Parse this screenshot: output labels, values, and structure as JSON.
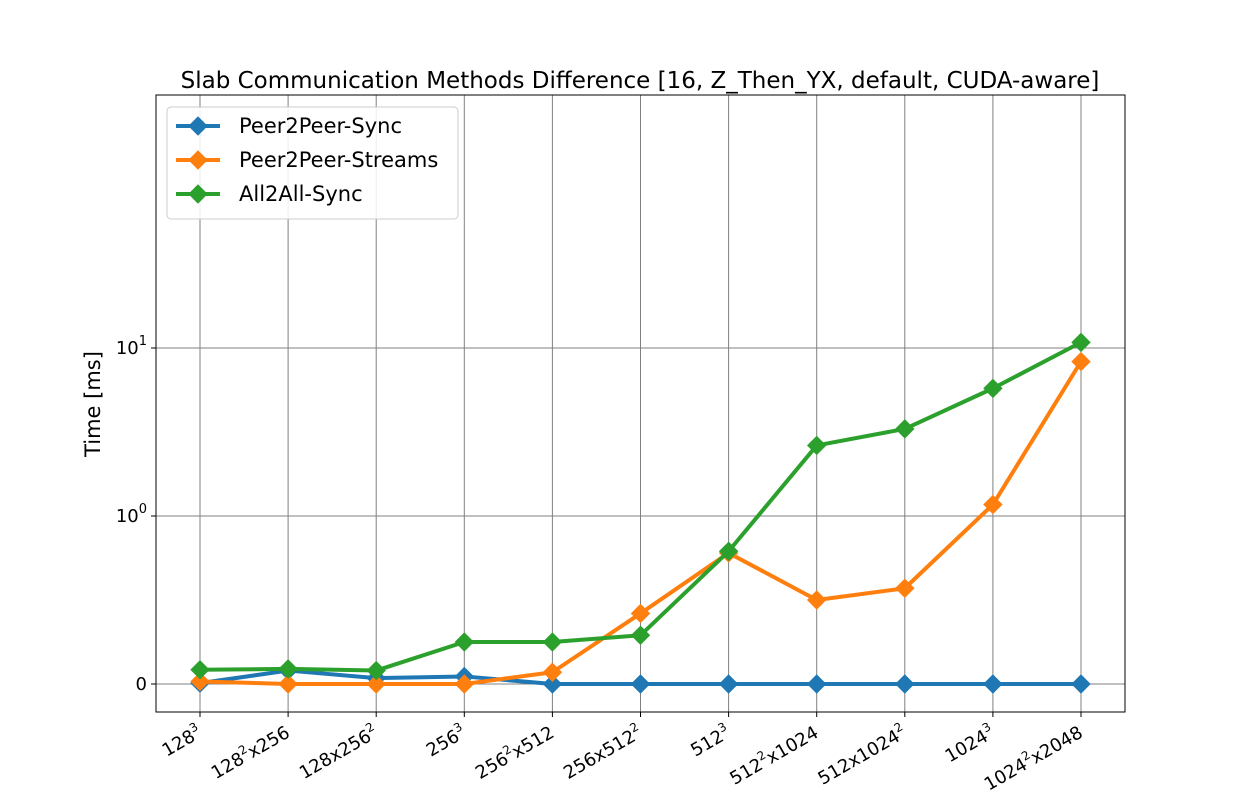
{
  "chart_data": {
    "type": "line",
    "title": "Slab Communication Methods Difference [16, Z_Then_YX, default, CUDA-aware]",
    "xlabel": "",
    "ylabel": "Time [ms]",
    "yscale": "symlog",
    "grid": true,
    "legend_position": "top-left",
    "categories": [
      {
        "base": "128",
        "sup": "3",
        "rest": ""
      },
      {
        "base": "128",
        "sup": "2",
        "rest": "x256"
      },
      {
        "base": "128x256",
        "sup": "2",
        "rest": ""
      },
      {
        "base": "256",
        "sup": "3",
        "rest": ""
      },
      {
        "base": "256",
        "sup": "2",
        "rest": "x512"
      },
      {
        "base": "256x512",
        "sup": "2",
        "rest": ""
      },
      {
        "base": "512",
        "sup": "3",
        "rest": ""
      },
      {
        "base": "512",
        "sup": "2",
        "rest": "x1024"
      },
      {
        "base": "512x1024",
        "sup": "2",
        "rest": ""
      },
      {
        "base": "1024",
        "sup": "3",
        "rest": ""
      },
      {
        "base": "1024",
        "sup": "2",
        "rest": "x2048"
      }
    ],
    "y_ticks": [
      {
        "value": 0,
        "base": "0",
        "sup": ""
      },
      {
        "value": 1,
        "base": "10",
        "sup": "0"
      },
      {
        "value": 10,
        "base": "10",
        "sup": "1"
      }
    ],
    "series": [
      {
        "name": "Peer2Peer-Sync",
        "color": "#1f77b4",
        "values": [
          0.005,
          0.08,
          0.035,
          0.045,
          0.0,
          0.0,
          0.0,
          0.0,
          0.0,
          0.0,
          0.0
        ]
      },
      {
        "name": "Peer2Peer-Streams",
        "color": "#ff7f0e",
        "values": [
          0.015,
          0.0,
          0.0,
          0.0,
          0.07,
          0.42,
          0.78,
          0.5,
          0.57,
          1.17,
          8.3
        ]
      },
      {
        "name": "All2All-Sync",
        "color": "#2ca02c",
        "values": [
          0.085,
          0.09,
          0.08,
          0.25,
          0.25,
          0.29,
          0.79,
          2.63,
          3.3,
          5.75,
          10.8
        ]
      }
    ]
  }
}
